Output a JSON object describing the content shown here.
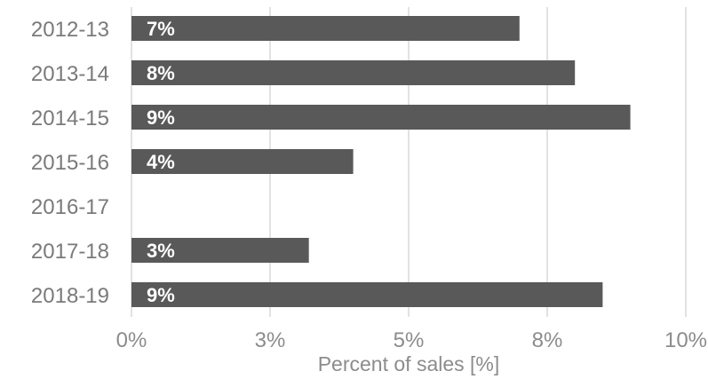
{
  "chart_data": {
    "type": "bar",
    "orientation": "horizontal",
    "categories": [
      "2012-13",
      "2013-14",
      "2014-15",
      "2015-16",
      "2016-17",
      "2017-18",
      "2018-19"
    ],
    "values": [
      7.0,
      8.0,
      9.0,
      4.0,
      null,
      3.2,
      8.5
    ],
    "data_labels": [
      "7%",
      "8%",
      "9%",
      "4%",
      "",
      "3%",
      "9%"
    ],
    "xlabel": "Percent of sales [%]",
    "ylabel": "",
    "xlim": [
      0,
      10
    ],
    "x_ticks": [
      0,
      2.5,
      5,
      7.5,
      10
    ],
    "x_tick_labels": [
      "0%",
      "3%",
      "5%",
      "8%",
      "10%"
    ],
    "grid": "vertical",
    "bar_color": "#595959",
    "grid_color": "#d9d9d9"
  }
}
